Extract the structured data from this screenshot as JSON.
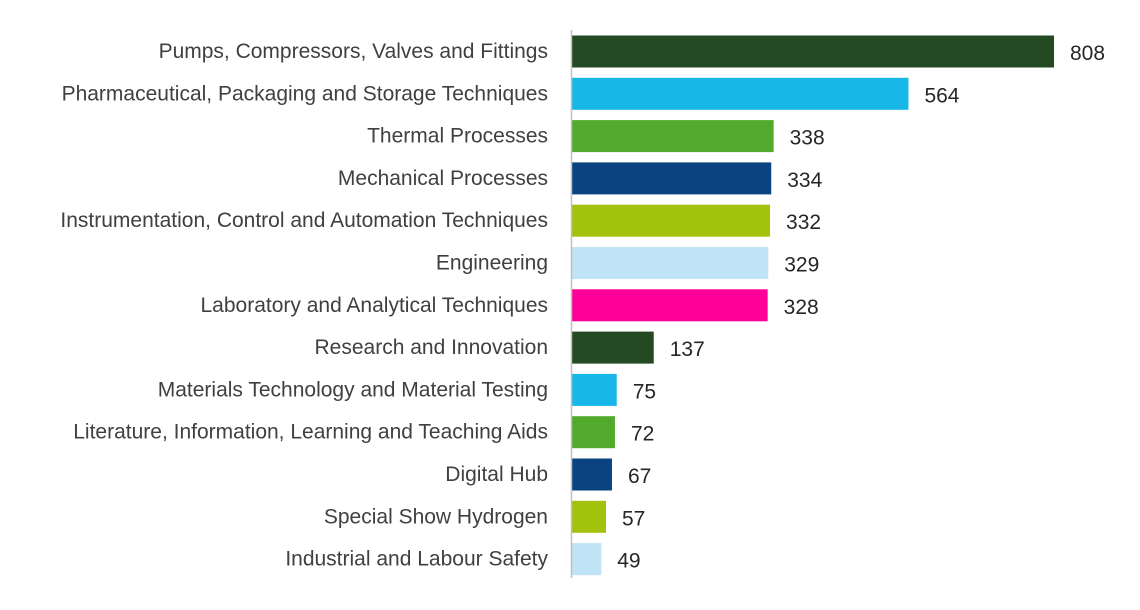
{
  "chart_data": {
    "type": "bar",
    "orientation": "horizontal",
    "title": "",
    "xlabel": "",
    "ylabel": "",
    "grid": false,
    "legend": "none",
    "xlim": [
      0,
      850
    ],
    "categories": [
      "Pumps, Compressors, Valves and Fittings",
      "Pharmaceutical, Packaging and Storage Techniques",
      "Thermal Processes",
      "Mechanical Processes",
      "Instrumentation, Control and Automation Techniques",
      "Engineering",
      "Laboratory and Analytical Techniques",
      "Research and Innovation",
      "Materials Technology and Material Testing",
      "Literature, Information, Learning and Teaching Aids",
      "Digital Hub",
      "Special Show Hydrogen",
      "Industrial and Labour Safety"
    ],
    "values": [
      808,
      564,
      338,
      334,
      332,
      329,
      328,
      137,
      75,
      72,
      67,
      57,
      49
    ],
    "colors": [
      "#244a24",
      "#17b8e8",
      "#52aa2c",
      "#0b4382",
      "#a3c20e",
      "#c0e4f6",
      "#ff0099",
      "#244a24",
      "#17b8e8",
      "#52aa2c",
      "#0b4382",
      "#a3c20e",
      "#c0e4f6"
    ],
    "axis_color": "#c0c0c0"
  }
}
